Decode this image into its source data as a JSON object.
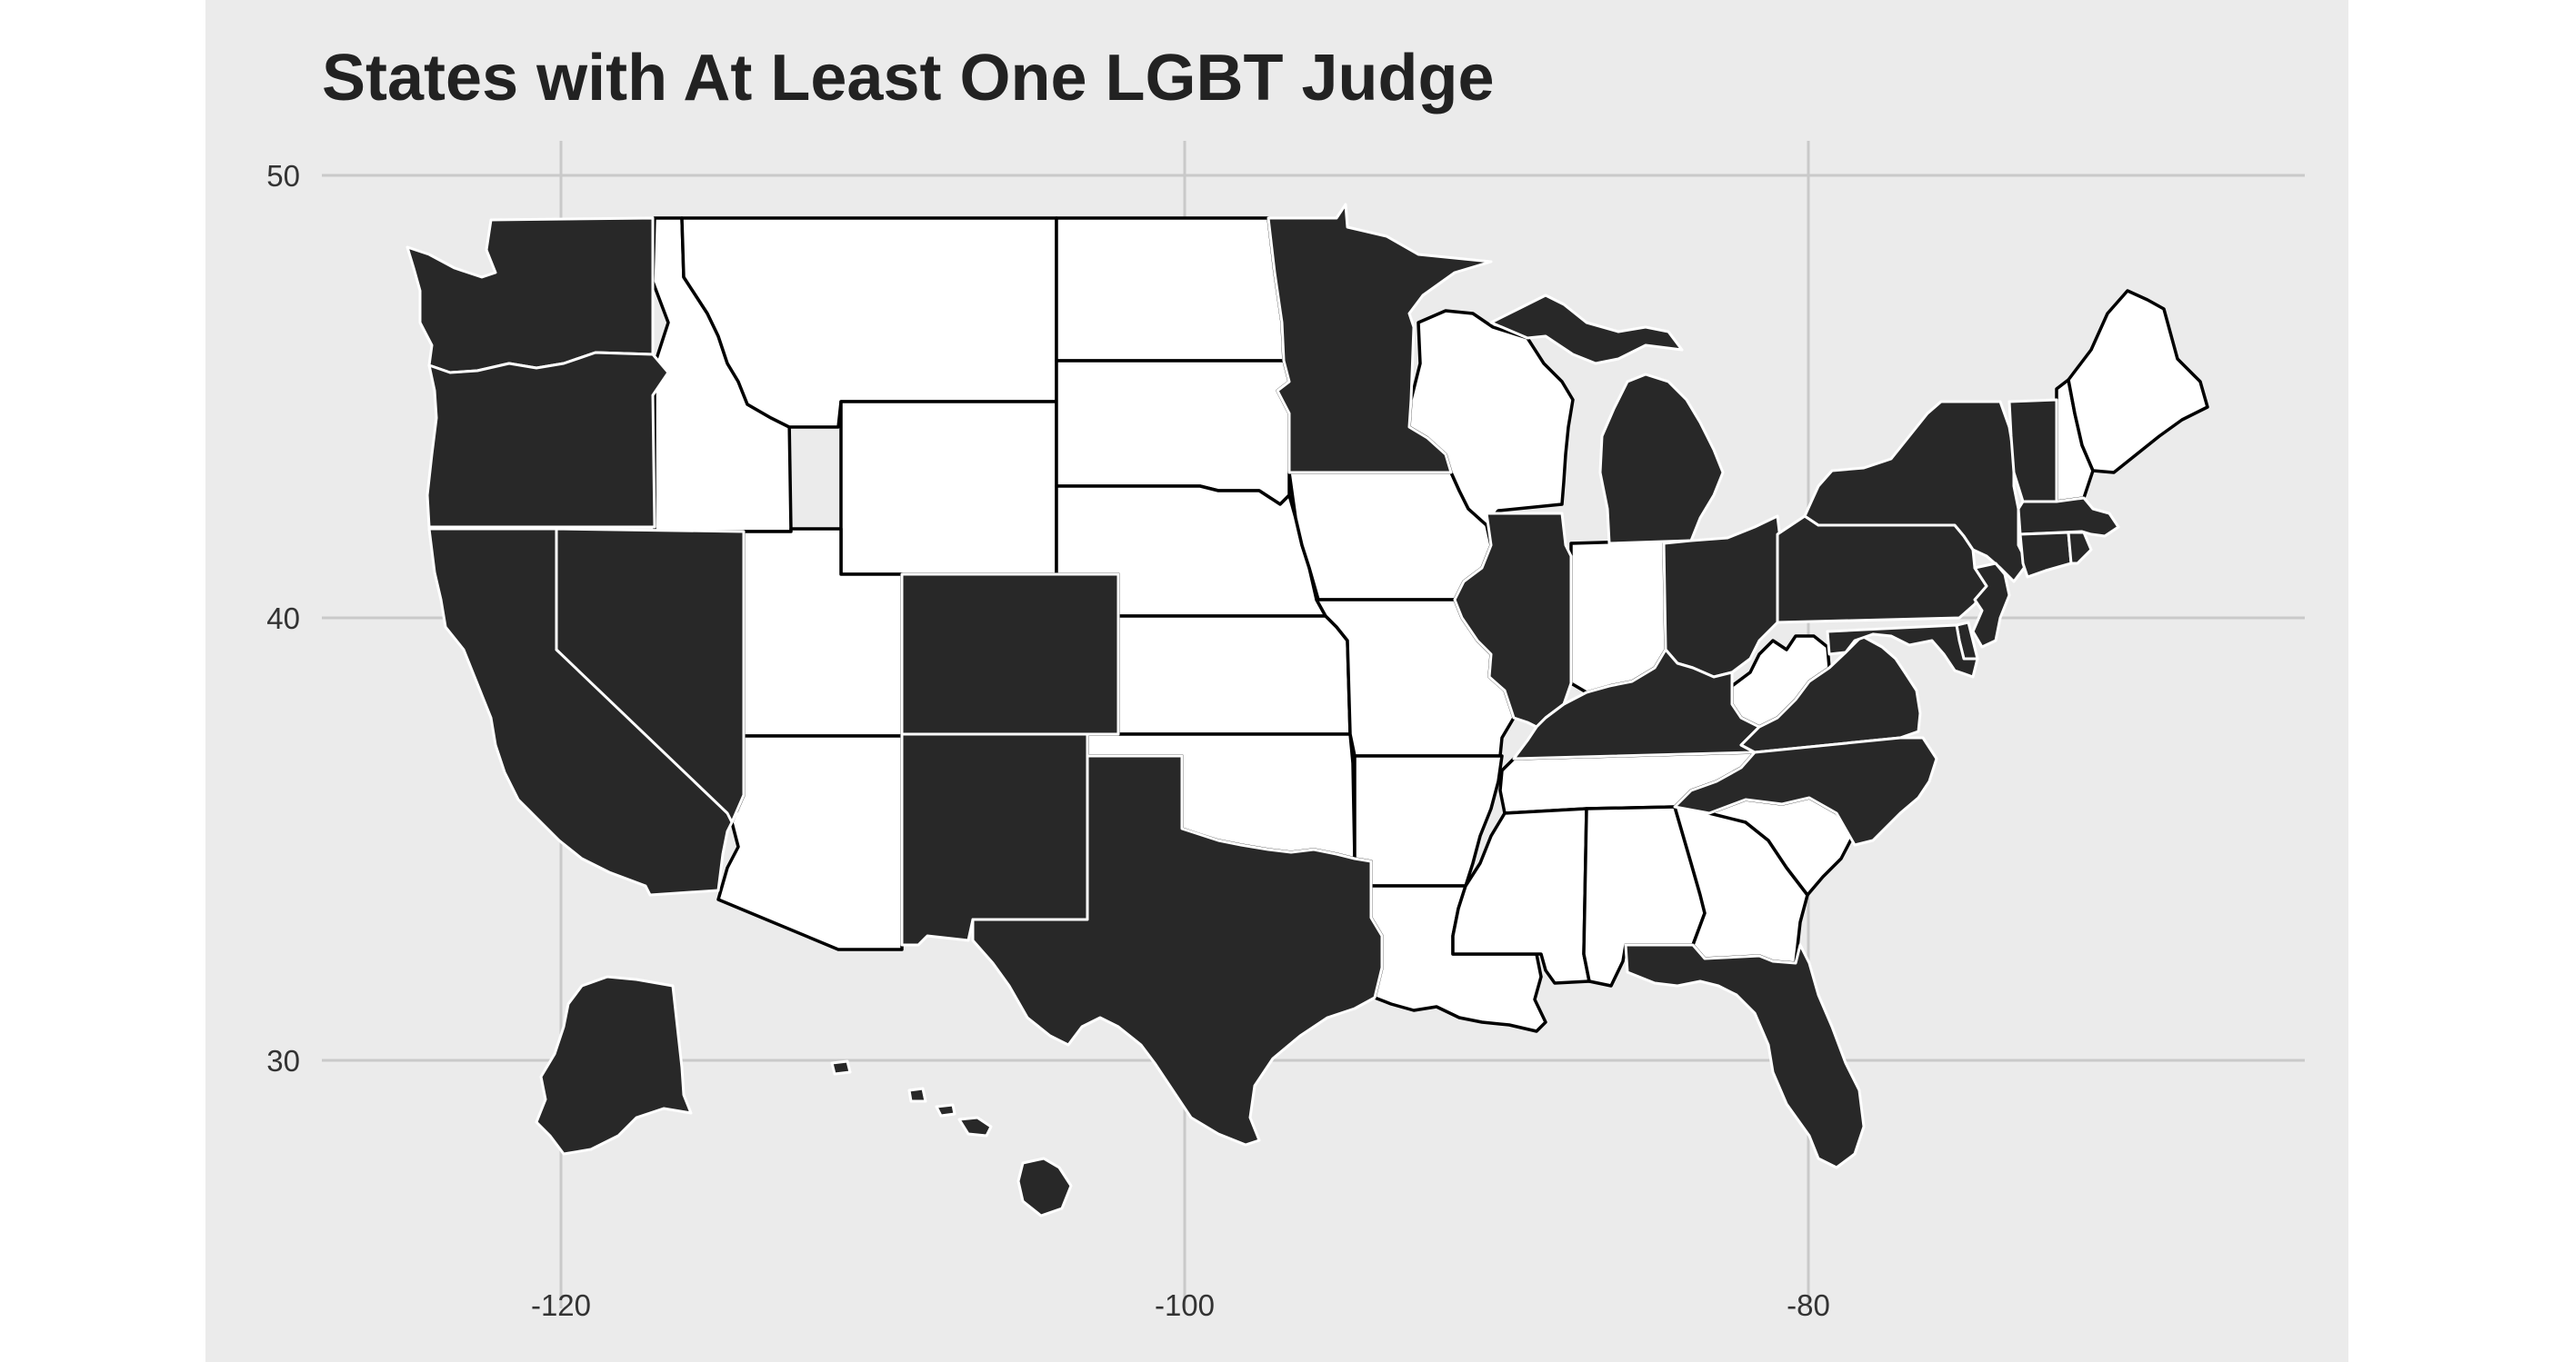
{
  "chart_data": {
    "type": "choropleth",
    "title": "States with At Least One LGBT Judge",
    "xlabel": "",
    "ylabel": "",
    "x_ticks": [
      -120,
      -100,
      -80
    ],
    "y_ticks": [
      50,
      40,
      30
    ],
    "grid": true,
    "colors": {
      "has_lgbt_judge": "#282828",
      "no_lgbt_judge": "#ffffff",
      "background": "#ebebeb",
      "grid": "#c9c9c9"
    },
    "states_with_lgbt_judge": [
      "WA",
      "OR",
      "CA",
      "NV",
      "CO",
      "NM",
      "TX",
      "MN",
      "IL",
      "MI",
      "OH",
      "KY",
      "VA",
      "MD",
      "DE",
      "NC",
      "FL",
      "PA",
      "NY",
      "VT",
      "MA",
      "CT",
      "RI",
      "NJ",
      "AK",
      "HI"
    ],
    "states_without_lgbt_judge": [
      "ID",
      "MT",
      "WY",
      "UT",
      "AZ",
      "ND",
      "SD",
      "NE",
      "KS",
      "OK",
      "IA",
      "MO",
      "AR",
      "LA",
      "WI",
      "IN",
      "TN",
      "MS",
      "AL",
      "GA",
      "SC",
      "WV",
      "NH",
      "ME"
    ]
  }
}
